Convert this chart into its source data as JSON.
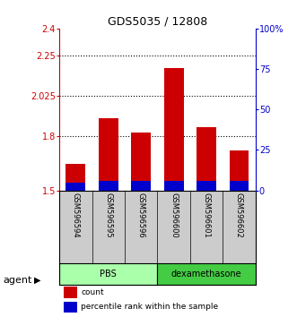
{
  "title": "GDS5035 / 12808",
  "samples": [
    "GSM596594",
    "GSM596595",
    "GSM596596",
    "GSM596600",
    "GSM596601",
    "GSM596602"
  ],
  "groups": [
    "PBS",
    "PBS",
    "PBS",
    "dexamethasone",
    "dexamethasone",
    "dexamethasone"
  ],
  "count_values": [
    1.65,
    1.9,
    1.82,
    2.18,
    1.85,
    1.72
  ],
  "percentile_values": [
    5,
    6,
    6,
    6,
    6,
    6
  ],
  "ylim_left": [
    1.5,
    2.4
  ],
  "ylim_right": [
    0,
    100
  ],
  "yticks_left": [
    1.5,
    1.8,
    2.025,
    2.25,
    2.4
  ],
  "ytick_labels_left": [
    "1.5",
    "1.8",
    "2.025",
    "2.25",
    "2.4"
  ],
  "yticks_right": [
    0,
    25,
    50,
    75,
    100
  ],
  "ytick_labels_right": [
    "0",
    "25",
    "50",
    "75",
    "100%"
  ],
  "hlines": [
    1.8,
    2.025,
    2.25
  ],
  "bar_bottom": 1.5,
  "bar_width": 0.6,
  "group_colors": {
    "PBS": "#AAFFAA",
    "dexamethasone": "#44CC44"
  },
  "count_color": "#CC0000",
  "percentile_color": "#0000CC",
  "left_axis_color": "#CC0000",
  "right_axis_color": "#0000CC",
  "agent_label": "agent",
  "legend_count": "count",
  "legend_percentile": "percentile rank within the sample",
  "background_color": "#FFFFFF",
  "plot_bg_color": "#FFFFFF",
  "label_area_color": "#CCCCCC"
}
